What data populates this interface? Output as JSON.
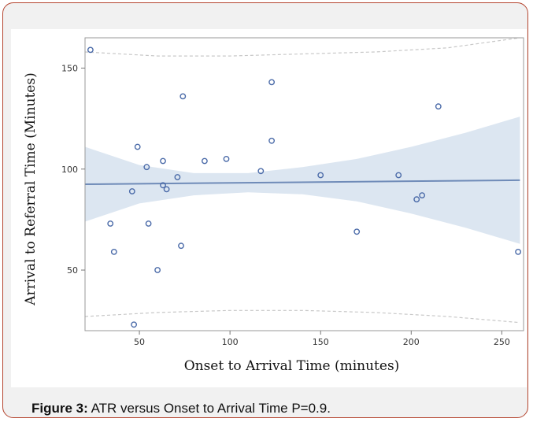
{
  "figure": {
    "caption_label": "Figure 3:",
    "caption_text": " ATR versus Onset to Arrival Time P=0.9."
  },
  "colors": {
    "frame_border": "#b5452f",
    "band_fill": "#dce6f1",
    "fit_line": "#6f8bb8",
    "point_stroke": "#4a6aa8",
    "prediction_dash": "#c8c8c8"
  },
  "chart_data": {
    "type": "scatter",
    "title": "",
    "xlabel": "Onset to Arrival Time (minutes)",
    "ylabel": "Arrival to Referral Time (Minutes)",
    "xlim": [
      20,
      262
    ],
    "ylim": [
      20,
      165
    ],
    "xticks": [
      50,
      100,
      150,
      200,
      250
    ],
    "yticks": [
      50,
      100,
      150
    ],
    "grid": false,
    "points": [
      {
        "x": 23,
        "y": 159
      },
      {
        "x": 34,
        "y": 73
      },
      {
        "x": 36,
        "y": 59
      },
      {
        "x": 46,
        "y": 89
      },
      {
        "x": 47,
        "y": 23
      },
      {
        "x": 49,
        "y": 111
      },
      {
        "x": 54,
        "y": 101
      },
      {
        "x": 55,
        "y": 73
      },
      {
        "x": 60,
        "y": 50
      },
      {
        "x": 63,
        "y": 104
      },
      {
        "x": 63,
        "y": 92
      },
      {
        "x": 65,
        "y": 90
      },
      {
        "x": 71,
        "y": 96
      },
      {
        "x": 73,
        "y": 62
      },
      {
        "x": 74,
        "y": 136
      },
      {
        "x": 86,
        "y": 104
      },
      {
        "x": 98,
        "y": 105
      },
      {
        "x": 117,
        "y": 99
      },
      {
        "x": 123,
        "y": 143
      },
      {
        "x": 123,
        "y": 114
      },
      {
        "x": 150,
        "y": 97
      },
      {
        "x": 170,
        "y": 69
      },
      {
        "x": 193,
        "y": 97
      },
      {
        "x": 203,
        "y": 85
      },
      {
        "x": 206,
        "y": 87
      },
      {
        "x": 215,
        "y": 131
      },
      {
        "x": 259,
        "y": 59
      }
    ],
    "fit_line": {
      "x": [
        20,
        260
      ],
      "y": [
        92.5,
        94.5
      ]
    },
    "confidence_band": {
      "x": [
        20,
        50,
        80,
        110,
        140,
        170,
        200,
        230,
        260
      ],
      "upper": [
        111,
        102,
        98,
        98,
        101,
        105,
        111,
        118,
        126
      ],
      "lower": [
        74,
        83,
        87,
        88.5,
        87.5,
        84,
        78,
        71,
        63
      ]
    },
    "prediction_band": {
      "x": [
        20,
        60,
        100,
        140,
        180,
        220,
        260
      ],
      "upper": [
        158,
        156,
        156,
        157,
        158,
        160,
        165
      ],
      "lower": [
        27,
        29,
        30,
        30,
        29,
        27,
        24
      ]
    }
  }
}
